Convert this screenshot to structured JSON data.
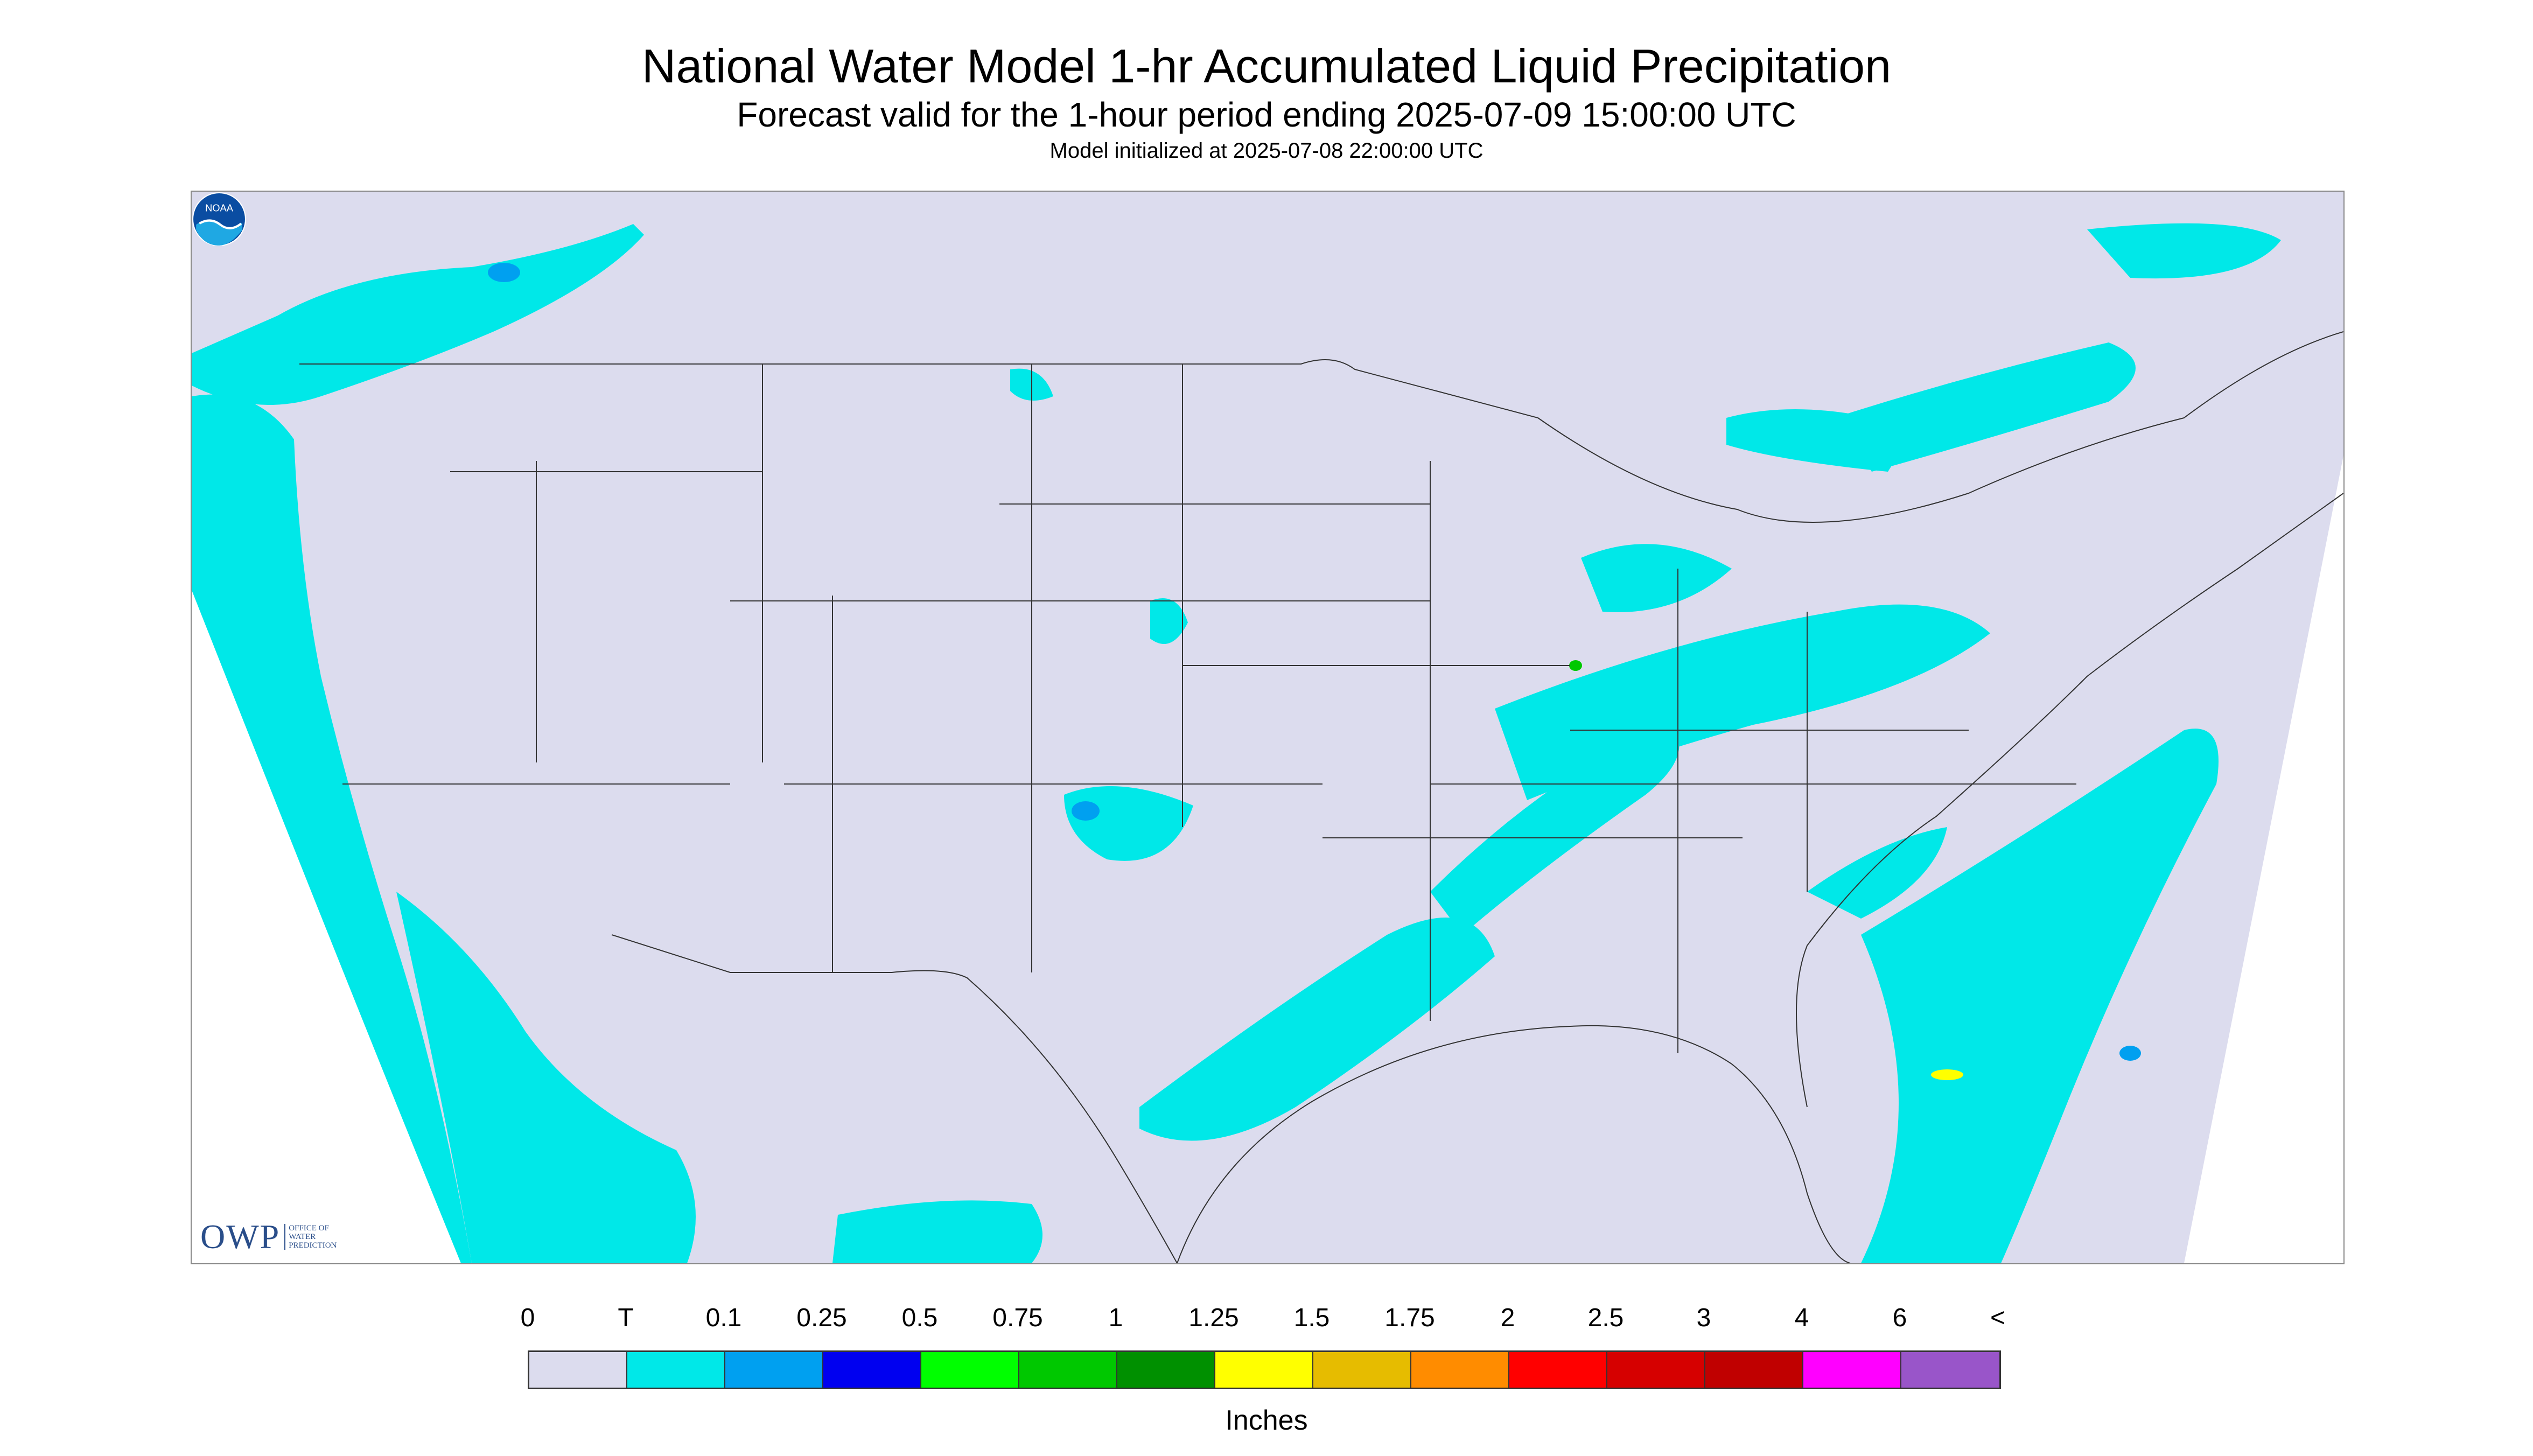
{
  "title": "National Water Model 1-hr Accumulated Liquid Precipitation",
  "subtitle": "Forecast valid for the 1-hour period ending 2025-07-09 15:00:00 UTC",
  "init_line": "Model initialized at 2025-07-08 22:00:00 UTC",
  "map": {
    "background_color": "#dcdcee",
    "boundary_color": "#333333",
    "outside_color": "#ffffff"
  },
  "logos": {
    "owp_letters": "OWP",
    "owp_text": [
      "OFFICE OF",
      "WATER",
      "PREDICTION"
    ],
    "noaa_text": "NOAA"
  },
  "legend": {
    "tick_labels": [
      "0",
      "T",
      "0.1",
      "0.25",
      "0.5",
      "0.75",
      "1",
      "1.25",
      "1.5",
      "1.75",
      "2",
      "2.5",
      "3",
      "4",
      "6",
      "<"
    ],
    "colors": [
      "#dcdcee",
      "#00e8e8",
      "#00a0f0",
      "#0000f0",
      "#00ff00",
      "#00c800",
      "#009000",
      "#ffff00",
      "#e6bc00",
      "#ff8c00",
      "#ff0000",
      "#d60000",
      "#c00000",
      "#ff00ff",
      "#9955c9"
    ],
    "units_label": "Inches"
  }
}
